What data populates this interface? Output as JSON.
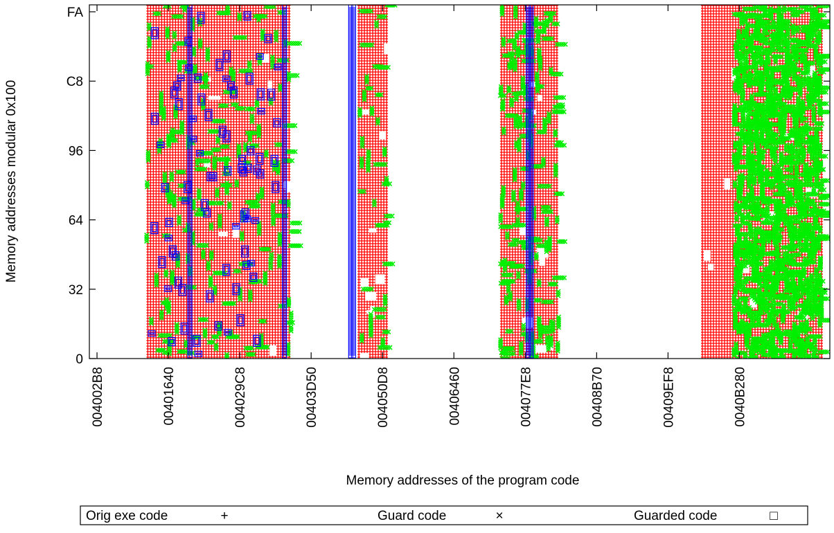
{
  "chart_data": {
    "type": "scatter",
    "title": "",
    "xlabel": "Memory addresses of the program code",
    "ylabel": "Memory addresses modular 0x100",
    "x_axis_format": "hex",
    "y_axis_format": "hex",
    "xlim": [
      "004000A0",
      "0040CB40"
    ],
    "ylim": [
      "00",
      "FF"
    ],
    "x_ticks": [
      "004002B8",
      "00401640",
      "004029C8",
      "00403D50",
      "004050D8",
      "00406460",
      "004077E8",
      "00408B70",
      "00409EF8",
      "0040B280"
    ],
    "y_ticks": [
      "0",
      "32",
      "64",
      "96",
      "C8",
      "FA"
    ],
    "grid": false,
    "legend_position": "bottom",
    "series": [
      {
        "name": "Orig exe code",
        "marker": "+",
        "color": "#ff0000",
        "regions": [
          {
            "x_start": "00401040",
            "x_end": "00403800",
            "y_from": "00",
            "y_to": "FF"
          },
          {
            "x_start": "00404A00",
            "x_end": "00405200",
            "y_from": "00",
            "y_to": "FF"
          },
          {
            "x_start": "00407100",
            "x_end": "00408140",
            "y_from": "00",
            "y_to": "FF"
          },
          {
            "x_start": "0040A800",
            "x_end": "0040C900",
            "y_from": "00",
            "y_to": "FF"
          }
        ]
      },
      {
        "name": "Guard code",
        "marker": "×",
        "color": "#00ee00",
        "regions": [
          {
            "x_start": "00401040",
            "x_end": "00403800",
            "y_from": "00",
            "y_to": "FF",
            "density": "scattered"
          },
          {
            "x_start": "00404A80",
            "x_end": "00405200",
            "y_from": "00",
            "y_to": "FF",
            "density": "scattered"
          },
          {
            "x_start": "00407100",
            "x_end": "00408140",
            "y_from": "00",
            "y_to": "FF",
            "density": "medium"
          },
          {
            "x_start": "0040B100",
            "x_end": "0040C900",
            "y_from": "00",
            "y_to": "FF",
            "density": "dense"
          }
        ]
      },
      {
        "name": "Guarded code",
        "marker": "□",
        "color": "#0000ff",
        "regions": [
          {
            "x_start": "00401B60",
            "x_end": "00401C60",
            "y_from": "00",
            "y_to": "FF"
          },
          {
            "x_start": "00403540",
            "x_end": "00403640",
            "y_from": "00",
            "y_to": "FF"
          },
          {
            "x_start": "00404760",
            "x_end": "00404920",
            "y_from": "00",
            "y_to": "FF"
          },
          {
            "x_start": "00404F00",
            "x_end": "00404F60",
            "y_from": "90",
            "y_to": "D0"
          },
          {
            "x_start": "00407800",
            "x_end": "00407A20",
            "y_from": "00",
            "y_to": "FF"
          }
        ]
      }
    ]
  }
}
